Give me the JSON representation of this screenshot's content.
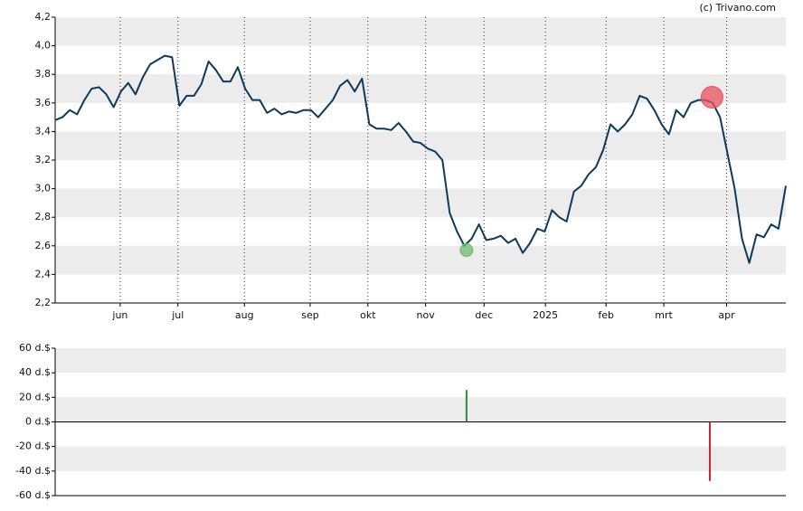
{
  "credit": "(c) Trivano.com",
  "chart_data": [
    {
      "type": "line",
      "values": [
        3.48,
        3.5,
        3.55,
        3.52,
        3.62,
        3.7,
        3.71,
        3.66,
        3.57,
        3.68,
        3.74,
        3.66,
        3.78,
        3.87,
        3.9,
        3.93,
        3.92,
        3.58,
        3.65,
        3.65,
        3.73,
        3.89,
        3.83,
        3.75,
        3.75,
        3.85,
        3.7,
        3.62,
        3.62,
        3.53,
        3.56,
        3.52,
        3.54,
        3.53,
        3.55,
        3.55,
        3.5,
        3.56,
        3.62,
        3.72,
        3.76,
        3.68,
        3.77,
        3.45,
        3.42,
        3.42,
        3.41,
        3.46,
        3.4,
        3.33,
        3.32,
        3.28,
        3.26,
        3.2,
        2.83,
        2.7,
        2.6,
        2.65,
        2.75,
        2.64,
        2.65,
        2.67,
        2.62,
        2.65,
        2.55,
        2.62,
        2.72,
        2.7,
        2.85,
        2.8,
        2.77,
        2.98,
        3.02,
        3.1,
        3.15,
        3.27,
        3.45,
        3.4,
        3.45,
        3.52,
        3.65,
        3.63,
        3.55,
        3.45,
        3.38,
        3.55,
        3.5,
        3.6,
        3.62,
        3.62,
        3.6,
        3.5,
        3.25,
        3.0,
        2.65,
        2.48,
        2.68,
        2.66,
        2.75,
        2.72,
        3.02
      ],
      "color": "#0d3a5c",
      "markers": [
        {
          "x": 56.3,
          "value": 2.57,
          "color": "#6dbb6d"
        },
        {
          "x": 89.9,
          "value": 3.64,
          "color": "#e8525f"
        }
      ],
      "xlim": [
        0,
        100
      ],
      "xticks": [
        {
          "value": 8.9,
          "label": "jun"
        },
        {
          "value": 16.8,
          "label": "jul"
        },
        {
          "value": 25.9,
          "label": "aug"
        },
        {
          "value": 34.9,
          "label": "sep"
        },
        {
          "value": 42.8,
          "label": "okt"
        },
        {
          "value": 50.7,
          "label": "nov"
        },
        {
          "value": 58.7,
          "label": "dec"
        },
        {
          "value": 67.1,
          "label": "2025"
        },
        {
          "value": 75.4,
          "label": "feb"
        },
        {
          "value": 83.3,
          "label": "mrt"
        },
        {
          "value": 91.9,
          "label": "apr"
        }
      ],
      "ylim": [
        2.2,
        4.2
      ],
      "yticks": [
        {
          "value": 2.2,
          "label": "2,2"
        },
        {
          "value": 2.4,
          "label": "2,4"
        },
        {
          "value": 2.6,
          "label": "2,6"
        },
        {
          "value": 2.8,
          "label": "2,8"
        },
        {
          "value": 3.0,
          "label": "3,0"
        },
        {
          "value": 3.2,
          "label": "3,2"
        },
        {
          "value": 3.4,
          "label": "3,4"
        },
        {
          "value": 3.6,
          "label": "3,6"
        },
        {
          "value": 3.8,
          "label": "3,8"
        },
        {
          "value": 4.0,
          "label": "4,0"
        },
        {
          "value": 4.2,
          "label": "4,2"
        }
      ],
      "grid": true
    },
    {
      "type": "bar",
      "x": [
        56.3,
        89.6
      ],
      "values": [
        26,
        -48
      ],
      "colors": [
        "#2e8b3a",
        "#cc2233"
      ],
      "xlim": [
        0,
        100
      ],
      "ylim": [
        -60,
        60
      ],
      "yticks": [
        {
          "value": -60,
          "label": "-60 d.$"
        },
        {
          "value": -40,
          "label": "-40 d.$"
        },
        {
          "value": -20,
          "label": "-20 d.$"
        },
        {
          "value": 0,
          "label": "0 d.$"
        },
        {
          "value": 20,
          "label": "20 d.$"
        },
        {
          "value": 40,
          "label": "40 d.$"
        },
        {
          "value": 60,
          "label": "60 d.$"
        }
      ],
      "grid": true
    }
  ]
}
